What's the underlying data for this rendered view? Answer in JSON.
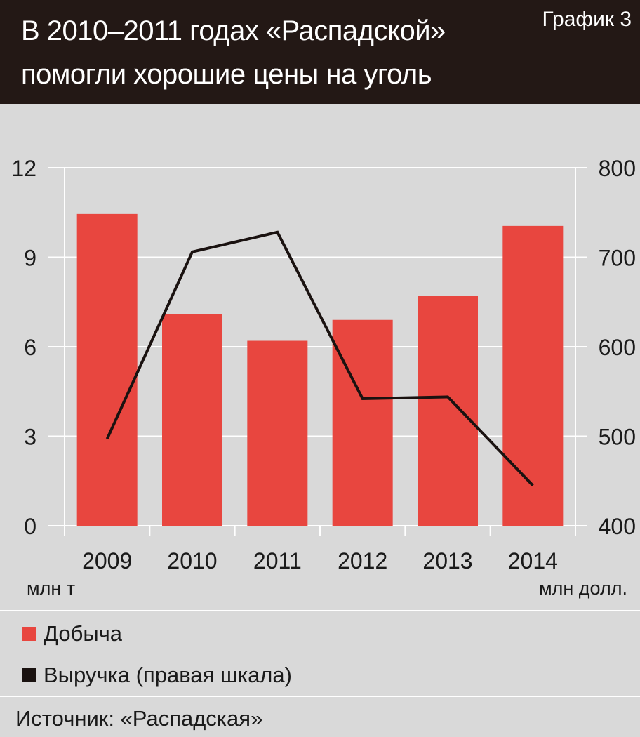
{
  "header": {
    "title_line1": "В 2010–2011 годах «Распадской»",
    "title_line2": "помогли хорошие цены на уголь",
    "chart_number": "График 3"
  },
  "colors": {
    "header_bg": "#231815",
    "background": "#d9d9d9",
    "bar": "#e8463f",
    "line": "#1a1210",
    "grid": "#ffffff"
  },
  "chart_data": {
    "type": "bar",
    "title": "В 2010–2011 годах «Распадской» помогли хорошие цены на уголь",
    "categories": [
      "2009",
      "2010",
      "2011",
      "2012",
      "2013",
      "2014"
    ],
    "series": [
      {
        "name": "Добыча",
        "type": "bar",
        "axis": "left",
        "values": [
          10.45,
          7.1,
          6.2,
          6.9,
          7.7,
          10.05
        ]
      },
      {
        "name": "Выручка (правая шкала)",
        "type": "line",
        "axis": "right",
        "values": [
          497,
          706,
          728,
          542,
          544,
          445
        ]
      }
    ],
    "y_left": {
      "label": "млн т",
      "min": 0,
      "max": 12,
      "ticks": [
        0,
        3,
        6,
        9,
        12
      ]
    },
    "y_right": {
      "label": "млн долл.",
      "min": 400,
      "max": 800,
      "ticks": [
        400,
        500,
        600,
        700,
        800
      ]
    },
    "grid": true,
    "legend_position": "bottom-left"
  },
  "legend": {
    "bar_label": "Добыча",
    "line_label": "Выручка (правая шкала)"
  },
  "footer": {
    "source": "Источник: «Распадская»"
  }
}
